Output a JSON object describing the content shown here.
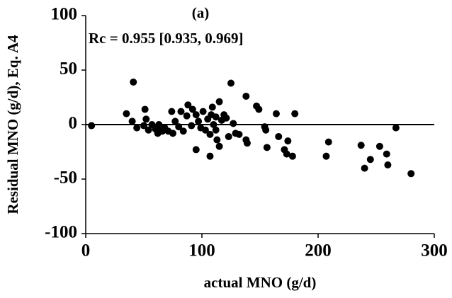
{
  "chart_data": {
    "type": "scatter",
    "title": "(a)",
    "annotation": "Rc = 0.955 [0.935, 0.969]",
    "x_label": "actual MNO (g/d)",
    "y_label": "Residual MNO (g/d), Eq. A4",
    "color": "#000000",
    "hline": 0,
    "xlim": [
      0,
      300
    ],
    "xticks": [
      0,
      100,
      200,
      300
    ],
    "ylim": [
      -100,
      100
    ],
    "yticks": [
      -100,
      -50,
      0,
      50,
      100
    ],
    "x": [
      5,
      35,
      41,
      40,
      44,
      51,
      52,
      50,
      54,
      57,
      60,
      62,
      63,
      64,
      66,
      68,
      71,
      74,
      75,
      77,
      80,
      82,
      84,
      87,
      88,
      91,
      92,
      95,
      95,
      97,
      99,
      101,
      103,
      105,
      107,
      107,
      108,
      109,
      110,
      112,
      112,
      113,
      115,
      115,
      117,
      119,
      121,
      123,
      125,
      127,
      129,
      132,
      138,
      138,
      139,
      147,
      149,
      154,
      155,
      156,
      164,
      166,
      171,
      173,
      174,
      178,
      180,
      207,
      209,
      237,
      240,
      245,
      253,
      259,
      260,
      267,
      280
    ],
    "values": [
      -1,
      10,
      39,
      3,
      -3,
      14,
      5,
      -1,
      -5,
      0,
      -4,
      -8,
      0,
      -2,
      -6,
      -3,
      -6,
      12,
      -8,
      3,
      -2,
      12,
      -6,
      8,
      18,
      -1,
      14,
      9,
      -23,
      3,
      -3,
      12,
      -5,
      5,
      -29,
      -9,
      9,
      16,
      0,
      7,
      -5,
      -14,
      21,
      -20,
      4,
      9,
      6,
      -11,
      38,
      1,
      -8,
      -9,
      26,
      -14,
      -17,
      17,
      14,
      -2,
      -5,
      -21,
      10,
      -11,
      -23,
      -27,
      -15,
      -29,
      10,
      -29,
      -16,
      -19,
      -40,
      -32,
      -20,
      -27,
      -37,
      -3,
      -45
    ]
  }
}
